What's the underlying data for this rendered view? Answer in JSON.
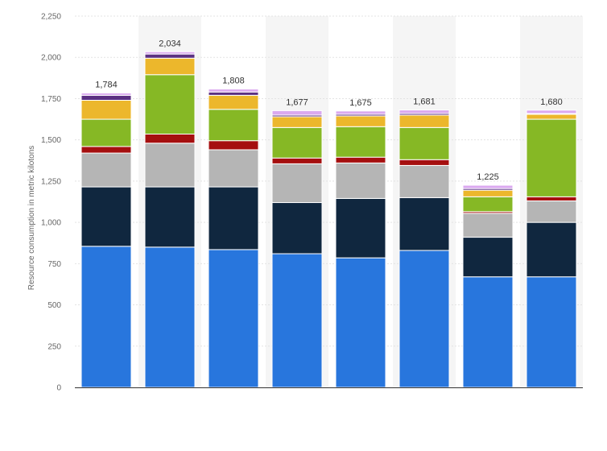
{
  "chart_data": {
    "type": "bar",
    "stacked": true,
    "categories": [
      "",
      "",
      "",
      "",
      "",
      "",
      "",
      ""
    ],
    "ylabel": "Resource consumption in metric kilotons",
    "ylim": [
      0,
      2250
    ],
    "yticks": [
      0,
      250,
      500,
      750,
      1000,
      1250,
      1500,
      1750,
      2000,
      2250
    ],
    "ytick_labels": [
      "0",
      "250",
      "500",
      "750",
      "1,000",
      "1,250",
      "1,500",
      "1,750",
      "2,000",
      "2,250"
    ],
    "totals": [
      1784,
      2034,
      1808,
      1677,
      1675,
      1681,
      1225,
      1680
    ],
    "total_labels": [
      "1,784",
      "2,034",
      "1,808",
      "1,677",
      "1,675",
      "1,681",
      "1,225",
      "1,680"
    ],
    "grid": true,
    "series": [
      {
        "color": "#2876dd",
        "values": [
          855,
          850,
          835,
          810,
          785,
          830,
          670,
          670
        ]
      },
      {
        "color": "#10273f",
        "values": [
          360,
          365,
          380,
          310,
          360,
          320,
          240,
          330
        ]
      },
      {
        "color": "#b5b5b5",
        "values": [
          205,
          265,
          225,
          235,
          215,
          195,
          145,
          130
        ]
      },
      {
        "color": "#a50f0f",
        "values": [
          40,
          55,
          55,
          35,
          35,
          35,
          10,
          25
        ]
      },
      {
        "color": "#86b825",
        "values": [
          165,
          360,
          190,
          185,
          185,
          195,
          90,
          470
        ]
      },
      {
        "color": "#ecb72c",
        "values": [
          115,
          100,
          85,
          65,
          65,
          75,
          40,
          30
        ]
      },
      {
        "color": "#5b2f82",
        "values": [
          30,
          25,
          20,
          10,
          10,
          10,
          10,
          5
        ]
      },
      {
        "color": "#dba9f0",
        "values": [
          14,
          14,
          18,
          27,
          20,
          21,
          20,
          20
        ]
      }
    ],
    "hover_band_color": "#f5f5f5"
  }
}
